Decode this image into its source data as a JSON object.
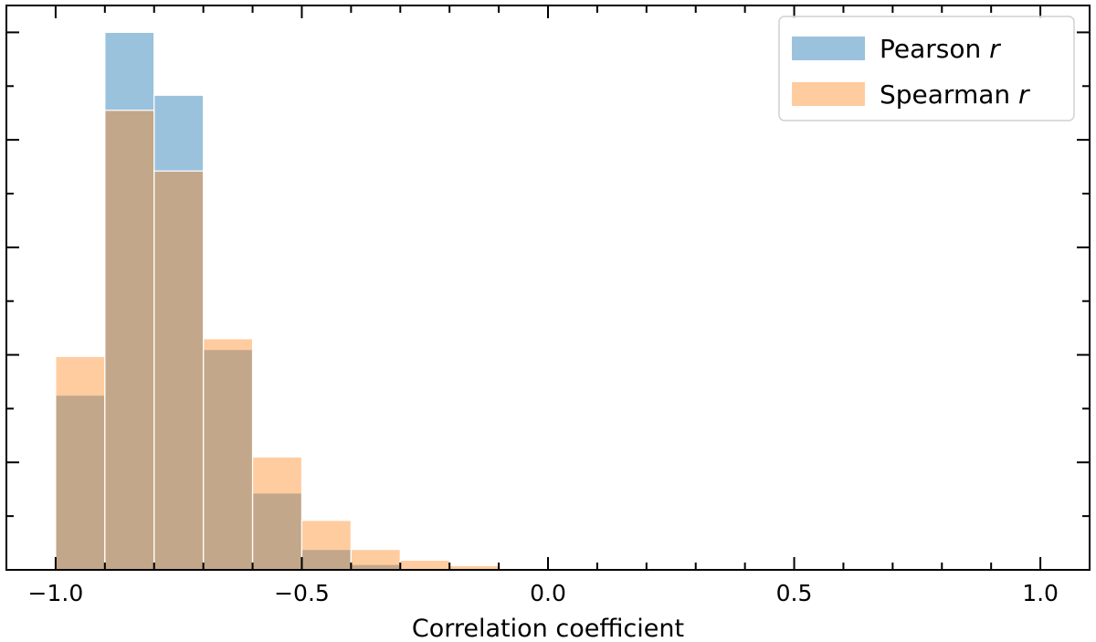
{
  "chart_data": {
    "type": "bar",
    "xlabel": "Correlation coefficient",
    "ylabel": "",
    "xlim": [
      -1.1,
      1.1
    ],
    "ylim": [
      0,
      1.05
    ],
    "x_ticks": [
      -1.0,
      -0.5,
      0.0,
      0.5,
      1.0
    ],
    "x_tick_labels": [
      "−1.0",
      "−0.5",
      "0.0",
      "0.5",
      "1.0"
    ],
    "x_minor_step": 0.1,
    "y_ticks_visible": false,
    "bin_edges": [
      -1.0,
      -0.9,
      -0.8,
      -0.7,
      -0.6,
      -0.5,
      -0.4,
      -0.3,
      -0.2,
      -0.1,
      0.0
    ],
    "series": [
      {
        "name": "Pearson",
        "legend_suffix": "r",
        "color": "#1f77b4",
        "alpha": 0.45,
        "values": [
          0.325,
          1.0,
          0.883,
          0.41,
          0.143,
          0.038,
          0.01,
          0.0,
          0.0,
          0.0
        ]
      },
      {
        "name": "Spearman",
        "legend_suffix": "r",
        "color": "#ff7f0e",
        "alpha": 0.4,
        "values": [
          0.397,
          0.855,
          0.742,
          0.43,
          0.21,
          0.092,
          0.038,
          0.018,
          0.008,
          0.0
        ]
      }
    ],
    "legend_position": "top-right",
    "grid": false,
    "ticks_direction": "in",
    "ticks_on_all_sides": true
  }
}
